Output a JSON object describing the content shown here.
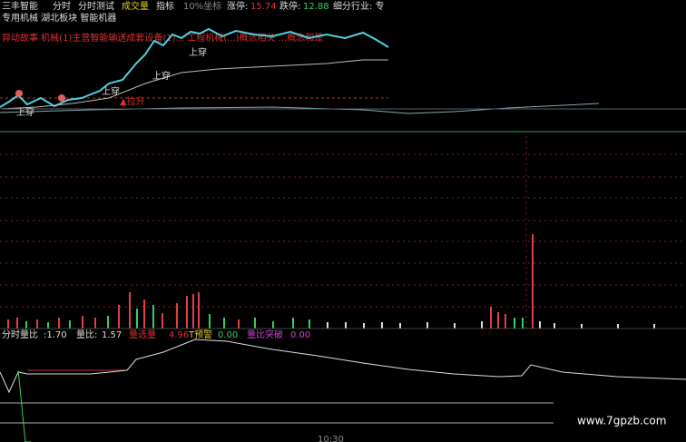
{
  "header": {
    "stock": "三丰智能",
    "tabs": [
      "分时",
      "分时测试",
      "成交量",
      "指标",
      "10%坐标"
    ],
    "limit_up_label": "涨停:",
    "limit_up": "15.74",
    "limit_down_label": "跌停:",
    "limit_down": "12.88",
    "industry": "细分行业: 专",
    "tags": "专用机械 湖北板块 智能机器"
  },
  "story": "异动故事  机械(1)主营智能输送成套设备(1)...  工程机械(...)概念相关  ...概念和是",
  "annotations": {
    "cross_1": "上穿",
    "cross_2": "上穿",
    "cross_3": "上穿",
    "cross_4": "上穿",
    "lift": "▲拉升"
  },
  "indicator": [
    {
      "label": "分时量比",
      "value": ":1.70"
    },
    {
      "label": "量比:",
      "value": "1.57"
    },
    {
      "label": "量选量",
      "value": "4.96"
    },
    {
      "label": "T预警",
      "value": "0.00"
    },
    {
      "label": "量比突破",
      "value": "0.00"
    }
  ],
  "watermark": "www.7gpzb.com",
  "time": "10:30"
}
